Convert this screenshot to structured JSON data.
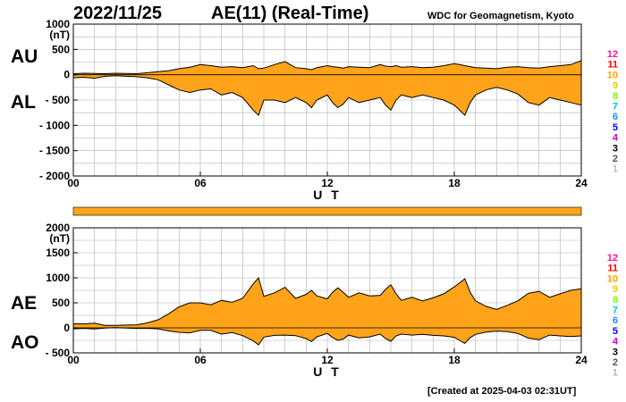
{
  "header": {
    "date": "2022/11/25",
    "title": "AE(11) (Real-Time)",
    "credit": "WDC for Geomagnetism, Kyoto",
    "created": "[Created at 2025-04-03 02:31UT]"
  },
  "colors": {
    "fill": "#ffa31a",
    "outline": "#000000",
    "grid": "#b0b0b0",
    "bar": "#ffa31a"
  },
  "station_scale": {
    "labels": [
      "12",
      "11",
      "10",
      "9",
      "8",
      "7",
      "6",
      "5",
      "4",
      "3",
      "2",
      "1"
    ],
    "colors": [
      "#ff1493",
      "#ff0000",
      "#ffa500",
      "#e6d200",
      "#7fff00",
      "#00c8c8",
      "#1e90ff",
      "#0000ff",
      "#cc00cc",
      "#000000",
      "#555555",
      "#bbbbbb"
    ]
  },
  "chart_data": [
    {
      "type": "area",
      "name": "AU/AL",
      "ylabel_unit": "(nT)",
      "xlabel": "U T",
      "label_upper": "AU",
      "label_lower": "AL",
      "ylim": [
        -2000,
        1000
      ],
      "yticks": [
        1000,
        500,
        0,
        -500,
        -1000,
        -1500,
        -2000
      ],
      "ytick_labels": [
        "1000",
        "500",
        "0",
        "- 500",
        "- 1000",
        "- 1500",
        "- 2000"
      ],
      "xlim": [
        0,
        24
      ],
      "xticks": [
        0,
        6,
        12,
        18,
        24
      ],
      "xtick_labels": [
        "00",
        "06",
        "12",
        "18",
        "24"
      ],
      "grid": true,
      "x": [
        0,
        0.5,
        1,
        1.5,
        2,
        2.5,
        3,
        3.5,
        4,
        4.5,
        5,
        5.5,
        6,
        6.5,
        7,
        7.5,
        8,
        8.5,
        8.75,
        9,
        9.5,
        10,
        10.5,
        11,
        11.25,
        11.5,
        12,
        12.25,
        12.5,
        12.75,
        13,
        13.5,
        14,
        14.5,
        14.75,
        15,
        15.25,
        15.5,
        16,
        16.5,
        17,
        17.5,
        18,
        18.25,
        18.5,
        18.75,
        19,
        19.5,
        20,
        20.5,
        21,
        21.5,
        22,
        22.5,
        23,
        23.5,
        24
      ],
      "series": [
        {
          "name": "AU",
          "values": [
            20,
            30,
            25,
            20,
            30,
            25,
            20,
            40,
            60,
            80,
            120,
            150,
            200,
            180,
            150,
            160,
            140,
            180,
            120,
            130,
            200,
            260,
            140,
            120,
            100,
            140,
            180,
            160,
            150,
            130,
            160,
            150,
            140,
            200,
            170,
            160,
            180,
            150,
            160,
            140,
            150,
            180,
            220,
            200,
            180,
            160,
            140,
            130,
            120,
            150,
            160,
            140,
            130,
            160,
            180,
            200,
            280
          ]
        },
        {
          "name": "AL",
          "values": [
            -60,
            -50,
            -70,
            -30,
            -20,
            -30,
            -40,
            -60,
            -100,
            -200,
            -300,
            -350,
            -300,
            -280,
            -400,
            -350,
            -450,
            -700,
            -800,
            -500,
            -500,
            -550,
            -450,
            -550,
            -650,
            -500,
            -400,
            -550,
            -650,
            -580,
            -450,
            -550,
            -500,
            -450,
            -600,
            -700,
            -500,
            -400,
            -450,
            -400,
            -450,
            -500,
            -600,
            -700,
            -800,
            -550,
            -400,
            -300,
            -250,
            -300,
            -380,
            -550,
            -600,
            -450,
            -500,
            -550,
            -600
          ]
        }
      ]
    },
    {
      "type": "area",
      "name": "AE/AO",
      "ylabel_unit": "(nT)",
      "xlabel": "U T",
      "label_upper": "AE",
      "label_lower": "AO",
      "ylim": [
        -500,
        2000
      ],
      "yticks": [
        2000,
        1500,
        1000,
        500,
        0,
        -500
      ],
      "ytick_labels": [
        "2000",
        "1500",
        "1000",
        "500",
        "0",
        "- 500"
      ],
      "xlim": [
        0,
        24
      ],
      "xticks": [
        0,
        6,
        12,
        18,
        24
      ],
      "xtick_labels": [
        "00",
        "06",
        "12",
        "18",
        "24"
      ],
      "grid": true,
      "x": [
        0,
        0.5,
        1,
        1.5,
        2,
        2.5,
        3,
        3.5,
        4,
        4.5,
        5,
        5.5,
        6,
        6.5,
        7,
        7.5,
        8,
        8.5,
        8.75,
        9,
        9.5,
        10,
        10.5,
        11,
        11.25,
        11.5,
        12,
        12.25,
        12.5,
        12.75,
        13,
        13.5,
        14,
        14.5,
        14.75,
        15,
        15.25,
        15.5,
        16,
        16.5,
        17,
        17.5,
        18,
        18.25,
        18.5,
        18.75,
        19,
        19.5,
        20,
        20.5,
        21,
        21.5,
        22,
        22.5,
        23,
        23.5,
        24
      ],
      "series": [
        {
          "name": "AE",
          "values": [
            80,
            80,
            95,
            50,
            50,
            55,
            60,
            100,
            160,
            280,
            420,
            500,
            500,
            460,
            550,
            510,
            590,
            880,
            1000,
            630,
            700,
            810,
            590,
            670,
            750,
            640,
            580,
            710,
            800,
            710,
            610,
            700,
            640,
            650,
            770,
            860,
            680,
            550,
            610,
            540,
            600,
            680,
            820,
            900,
            980,
            710,
            540,
            430,
            370,
            450,
            540,
            690,
            730,
            610,
            680,
            750,
            780
          ]
        },
        {
          "name": "AO",
          "values": [
            -20,
            -10,
            -22,
            -5,
            5,
            -3,
            -10,
            -10,
            -20,
            -60,
            -90,
            -100,
            -50,
            -50,
            -125,
            -95,
            -155,
            -260,
            -340,
            -185,
            -150,
            -145,
            -155,
            -215,
            -275,
            -180,
            -110,
            -195,
            -250,
            -225,
            -145,
            -200,
            -180,
            -125,
            -215,
            -270,
            -160,
            -125,
            -145,
            -130,
            -150,
            -160,
            -190,
            -250,
            -310,
            -195,
            -130,
            -85,
            -65,
            -75,
            -110,
            -205,
            -235,
            -145,
            -160,
            -175,
            -160
          ]
        }
      ]
    }
  ]
}
